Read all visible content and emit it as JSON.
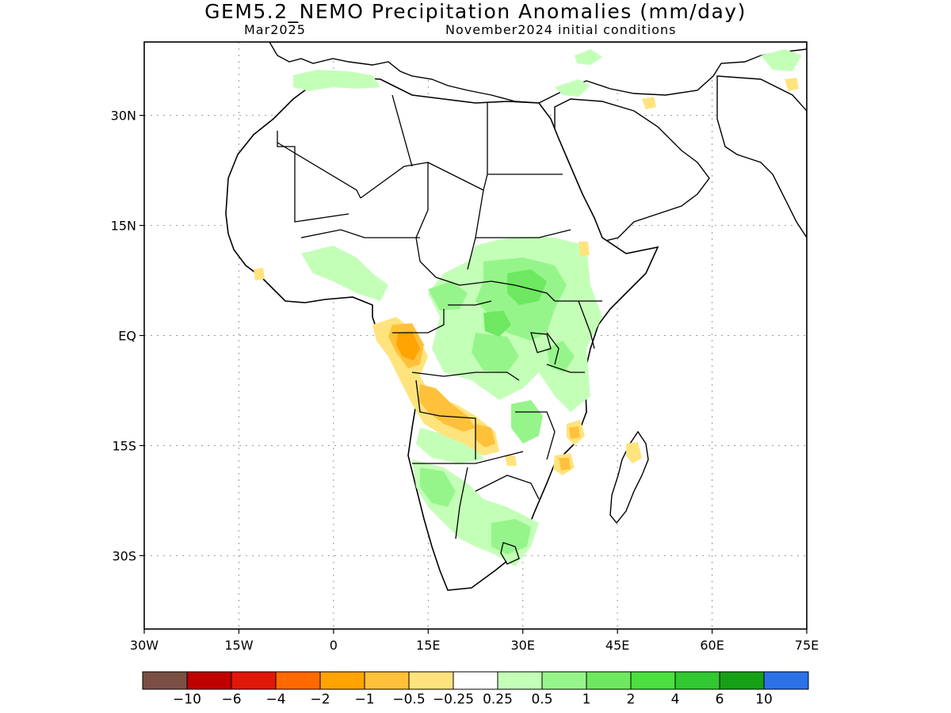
{
  "title": "GEM5.2_NEMO Precipitation Anomalies (mm/day)",
  "subtitle_left": "Mar2025",
  "subtitle_right": "November2024 initial conditions",
  "map": {
    "lon_range": [
      -30,
      75
    ],
    "lat_range": [
      -40,
      40
    ],
    "x_ticks": [
      {
        "lon": -30,
        "label": "30W"
      },
      {
        "lon": -15,
        "label": "15W"
      },
      {
        "lon": 0,
        "label": "0"
      },
      {
        "lon": 15,
        "label": "15E"
      },
      {
        "lon": 30,
        "label": "30E"
      },
      {
        "lon": 45,
        "label": "45E"
      },
      {
        "lon": 60,
        "label": "60E"
      },
      {
        "lon": 75,
        "label": "75E"
      }
    ],
    "y_ticks": [
      {
        "lat": 30,
        "label": "30N"
      },
      {
        "lat": 15,
        "label": "15N"
      },
      {
        "lat": 0,
        "label": "EQ"
      },
      {
        "lat": -15,
        "label": "15S"
      },
      {
        "lat": -30,
        "label": "30S"
      }
    ],
    "grid": true
  },
  "colorbar": {
    "colors": [
      "#7a5045",
      "#c00000",
      "#e01808",
      "#ff6a00",
      "#ffa400",
      "#ffc13a",
      "#ffe37d",
      "#ffffff",
      "#c4ffb8",
      "#96f58a",
      "#6ee860",
      "#4be040",
      "#32c832",
      "#16a016",
      "#2b72e8"
    ],
    "labels": [
      "−10",
      "−6",
      "−4",
      "−2",
      "−1",
      "−0.5",
      "−0.25",
      "0.25",
      "0.5",
      "1",
      "2",
      "4",
      "6",
      "10"
    ]
  }
}
